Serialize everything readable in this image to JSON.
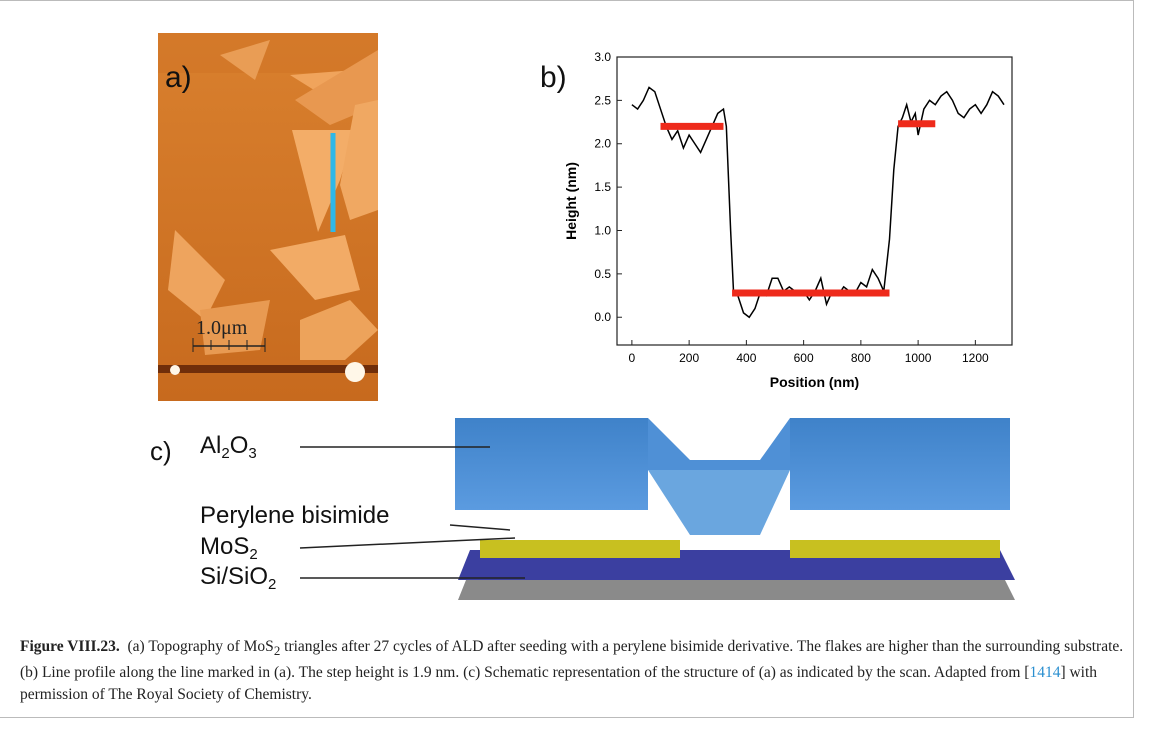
{
  "figure": {
    "panel_a": {
      "label": "a)",
      "scale_bar": "1.0μm"
    },
    "panel_c": {
      "label": "c)",
      "layers": [
        [
          "Al",
          "2",
          "O",
          "3"
        ],
        [
          "Perylene bisimide"
        ],
        [
          "MoS",
          "2"
        ],
        [
          "Si/SiO",
          "2"
        ]
      ]
    },
    "caption": {
      "lead": "Figure VIII.23.",
      "parts": [
        "(a) Topography of MoS",
        "2",
        " triangles after 27 cycles of ALD after seeding with a perylene bisimide derivative. The flakes are higher than the surrounding substrate. (b) Line profile along the line marked in (a). The step height is 1.9 nm. (c) Schematic representation of the structure of (a) as indicated by the scan. Adapted from [",
        "1414",
        "] with permission of The Royal Society of Chemistry."
      ]
    }
  },
  "chart_data": {
    "type": "line",
    "panel_label": "b)",
    "x_label": "Position (nm)",
    "y_label": "Height (nm)",
    "xlim": [
      -52,
      1328
    ],
    "ylim": [
      -0.32,
      3.0
    ],
    "xticks": [
      0,
      200,
      400,
      600,
      800,
      1000,
      1200
    ],
    "yticks": [
      {
        "value": 0,
        "label": "0.0"
      },
      {
        "value": 0.5,
        "label": "0.5"
      },
      {
        "value": 1,
        "label": "1.0"
      },
      {
        "value": 1.5,
        "label": "1.5"
      },
      {
        "value": 2,
        "label": "2.0"
      },
      {
        "value": 2.5,
        "label": "2.5"
      },
      {
        "value": 3,
        "label": "3.0"
      }
    ],
    "series": [
      {
        "color": "#000000",
        "x": [
          0,
          20,
          40,
          60,
          80,
          100,
          120,
          140,
          160,
          180,
          200,
          220,
          240,
          260,
          280,
          300,
          320,
          330,
          345,
          355,
          370,
          390,
          410,
          430,
          450,
          470,
          490,
          510,
          530,
          550,
          570,
          600,
          620,
          640,
          660,
          680,
          700,
          720,
          740,
          760,
          780,
          800,
          820,
          840,
          860,
          880,
          900,
          915,
          930,
          945,
          960,
          975,
          990,
          1000,
          1020,
          1040,
          1060,
          1080,
          1100,
          1120,
          1140,
          1160,
          1180,
          1200,
          1220,
          1240,
          1260,
          1280,
          1300
        ],
        "values": [
          2.45,
          2.4,
          2.5,
          2.65,
          2.6,
          2.4,
          2.2,
          2.05,
          2.15,
          1.95,
          2.1,
          2.0,
          1.9,
          2.05,
          2.2,
          2.35,
          2.4,
          2.2,
          1.0,
          0.3,
          0.25,
          0.05,
          0.0,
          0.1,
          0.3,
          0.25,
          0.45,
          0.45,
          0.3,
          0.35,
          0.3,
          0.3,
          0.2,
          0.3,
          0.45,
          0.15,
          0.3,
          0.25,
          0.35,
          0.3,
          0.28,
          0.4,
          0.35,
          0.55,
          0.45,
          0.3,
          0.9,
          1.7,
          2.2,
          2.3,
          2.45,
          2.25,
          2.35,
          2.1,
          2.4,
          2.5,
          2.45,
          2.55,
          2.6,
          2.5,
          2.35,
          2.3,
          2.4,
          2.45,
          2.35,
          2.45,
          2.6,
          2.55,
          2.45
        ]
      }
    ],
    "levels": [
      {
        "x": [
          100,
          320
        ],
        "y": 2.2,
        "color": "#ee2a1b"
      },
      {
        "x": [
          350,
          900
        ],
        "y": 0.28,
        "color": "#ee2a1b"
      },
      {
        "x": [
          930,
          1060
        ],
        "y": 2.23,
        "color": "#ee2a1b"
      }
    ]
  }
}
